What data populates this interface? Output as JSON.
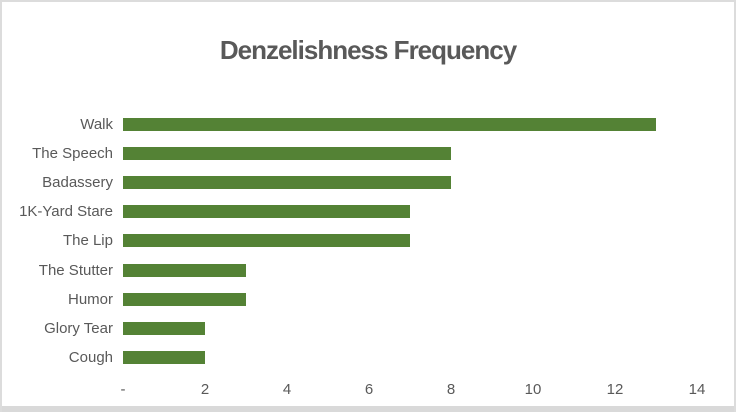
{
  "chart_data": {
    "type": "bar",
    "orientation": "horizontal",
    "title": "Denzelishness Frequency",
    "categories": [
      "Walk",
      "The Speech",
      "Badassery",
      "1K-Yard Stare",
      "The Lip",
      "The Stutter",
      "Humor",
      "Glory Tear",
      "Cough"
    ],
    "values": [
      13,
      8,
      8,
      7,
      7,
      3,
      3,
      2,
      2
    ],
    "xlabel": "",
    "ylabel": "",
    "xlim": [
      0,
      14
    ],
    "xticks": {
      "values": [
        0,
        2,
        4,
        6,
        8,
        10,
        12,
        14
      ],
      "labels": [
        "-",
        "2",
        "4",
        "6",
        "8",
        "10",
        "12",
        "14"
      ]
    },
    "grid": false,
    "legend": false,
    "bar_color": "#548235",
    "text_color": "#595959",
    "frame_border_color": "#dcdcdc",
    "bottom_band_color": "#d9d9d9"
  }
}
